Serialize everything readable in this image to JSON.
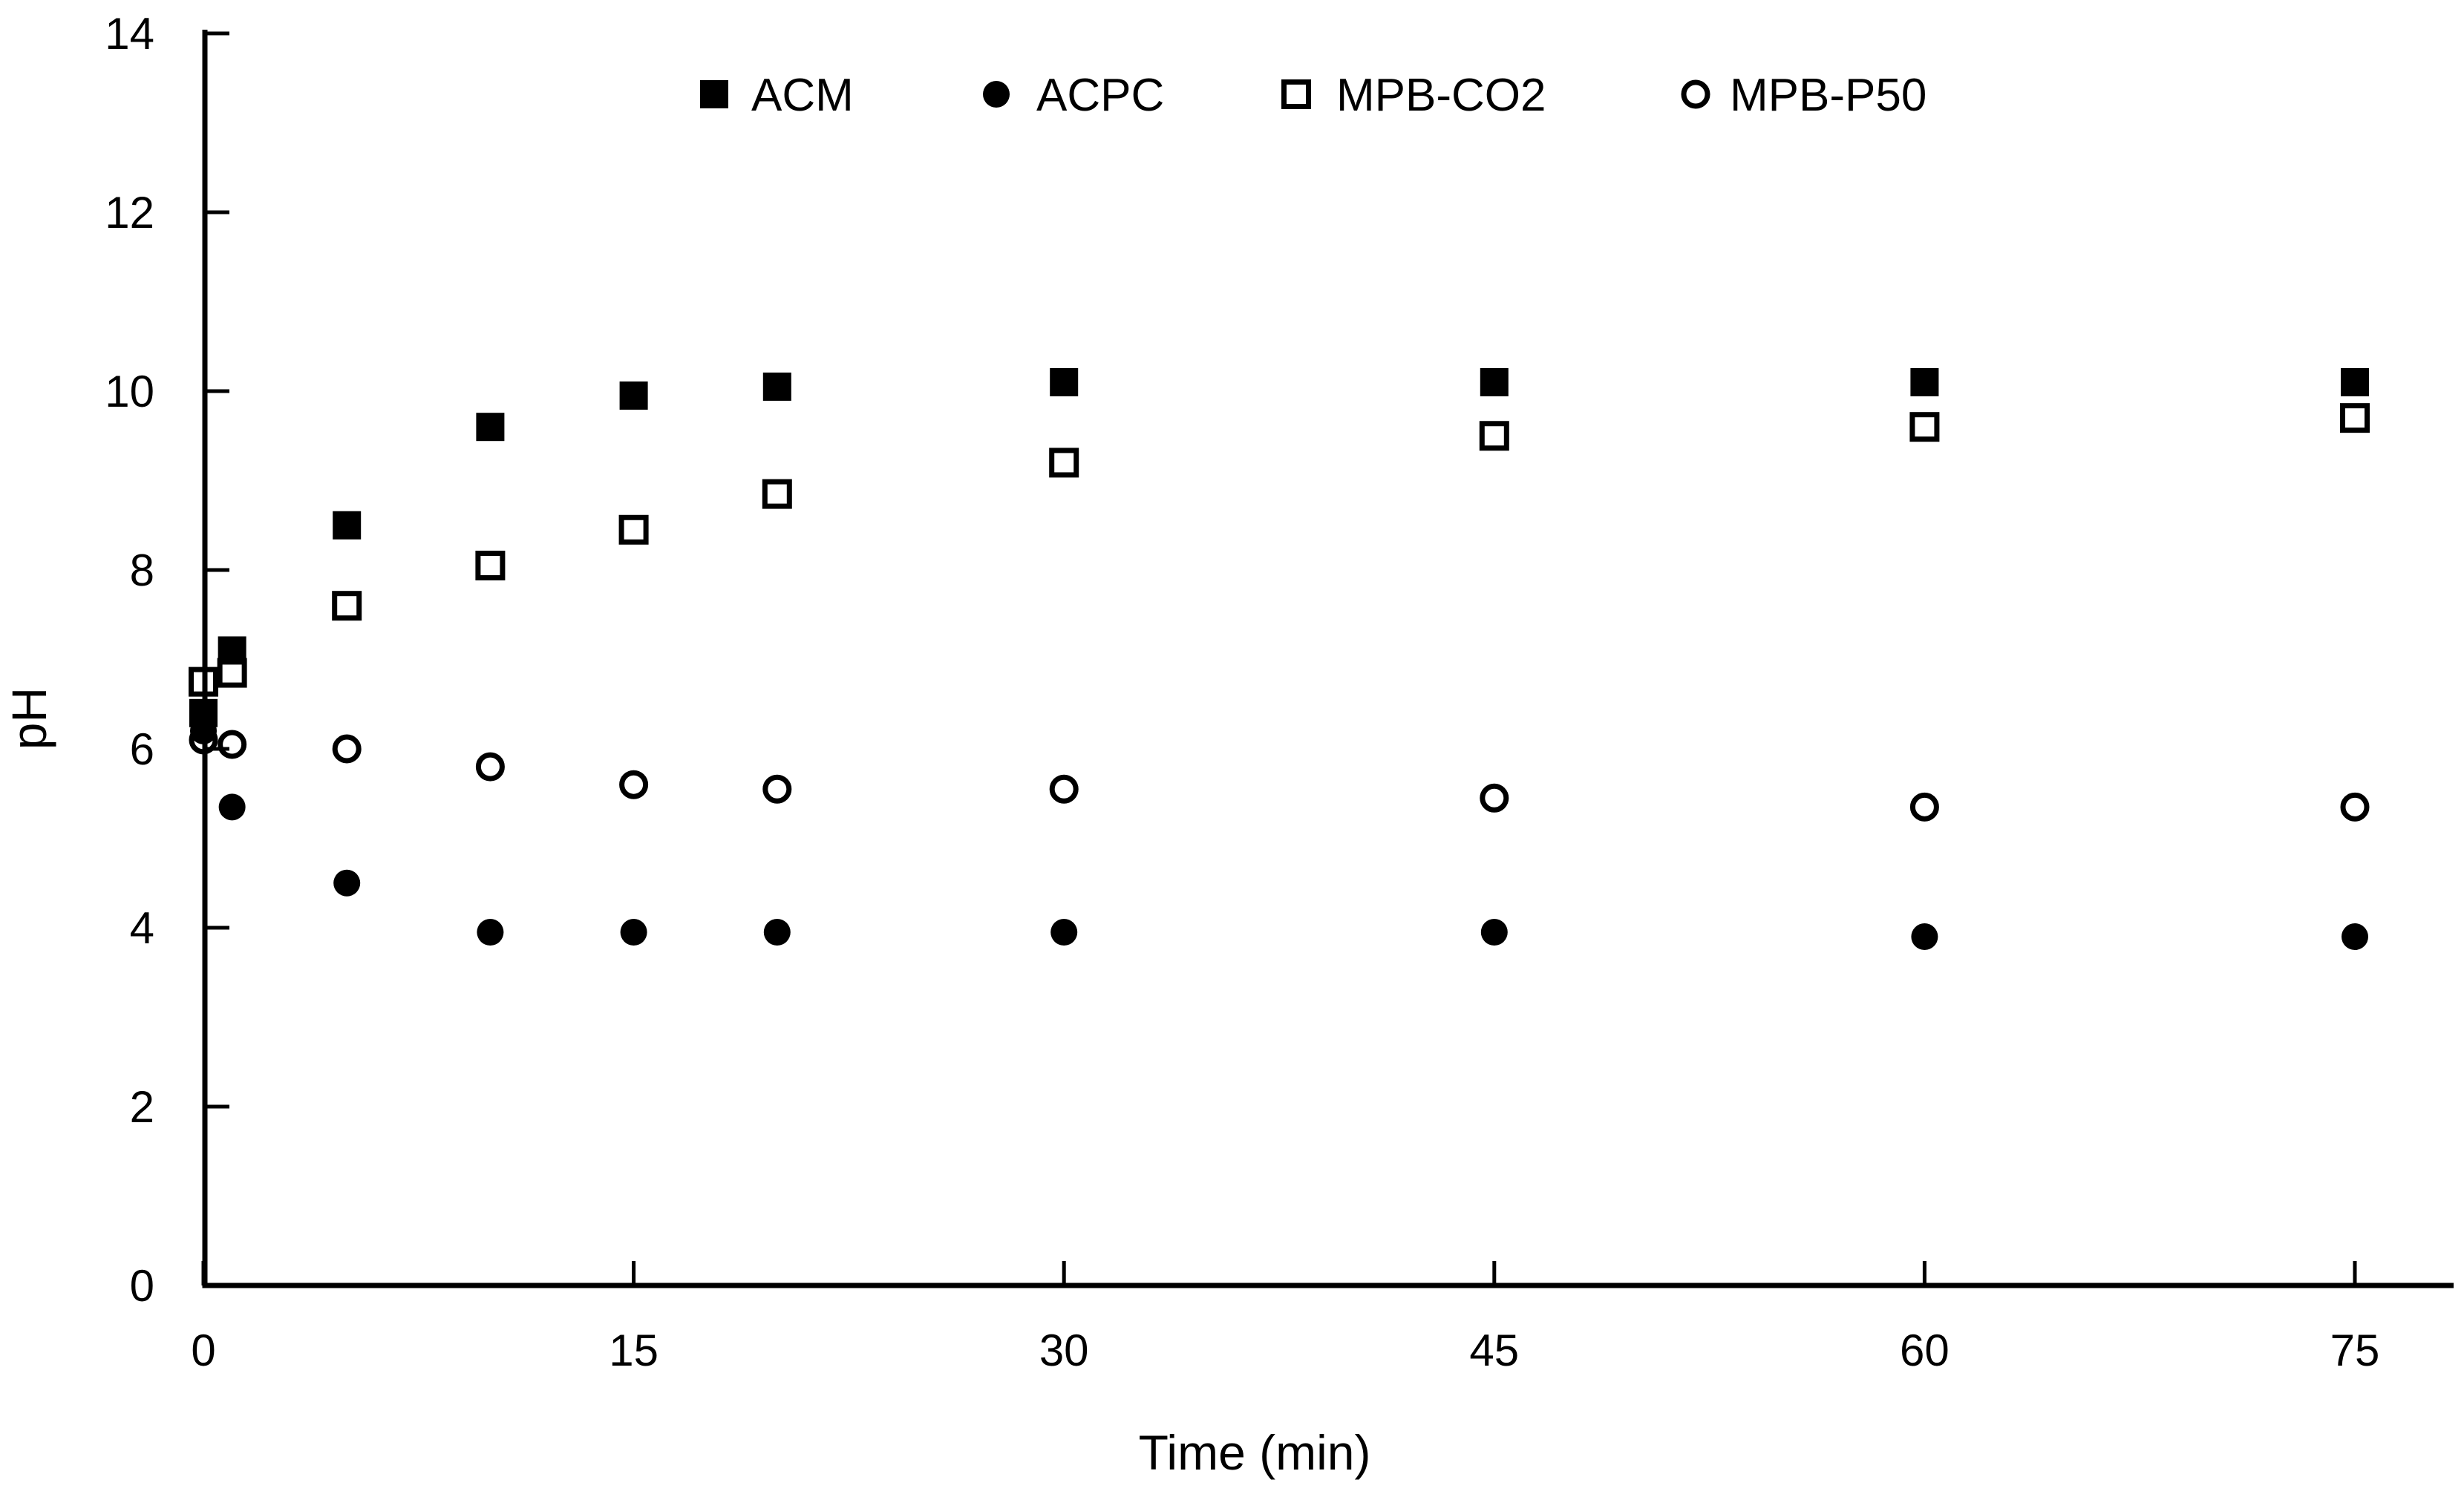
{
  "figure": {
    "background_color": "#ffffff",
    "ink_color": "#000000"
  },
  "chart_data": {
    "type": "scatter",
    "title": "",
    "xlabel": "Time (min)",
    "ylabel": "pH",
    "grid": false,
    "legend_position": "top-center",
    "xlim": [
      0,
      78.5
    ],
    "ylim": [
      0,
      14
    ],
    "x_ticks": [
      0,
      15,
      30,
      45,
      60,
      75
    ],
    "y_ticks": [
      0,
      2,
      4,
      6,
      8,
      10,
      12,
      14
    ],
    "x": [
      0,
      1,
      5,
      10,
      15,
      20,
      30,
      45,
      60,
      75
    ],
    "series": [
      {
        "name": "ACM",
        "marker": "filled-square",
        "color": "#000000",
        "values": [
          6.4,
          7.1,
          8.5,
          9.6,
          9.95,
          10.05,
          10.1,
          10.1,
          10.1,
          10.1
        ]
      },
      {
        "name": "ACPC",
        "marker": "filled-circle",
        "color": "#000000",
        "values": [
          6.2,
          5.35,
          4.5,
          3.95,
          3.95,
          3.95,
          3.95,
          3.95,
          3.9,
          3.9
        ]
      },
      {
        "name": "MPB-CO2",
        "marker": "open-square",
        "color": "#000000",
        "values": [
          6.75,
          6.85,
          7.6,
          8.05,
          8.45,
          8.85,
          9.2,
          9.5,
          9.6,
          9.7
        ]
      },
      {
        "name": "MPB-P50",
        "marker": "open-circle",
        "color": "#000000",
        "values": [
          6.1,
          6.05,
          6.0,
          5.8,
          5.6,
          5.55,
          5.55,
          5.45,
          5.35,
          5.35
        ]
      }
    ]
  }
}
